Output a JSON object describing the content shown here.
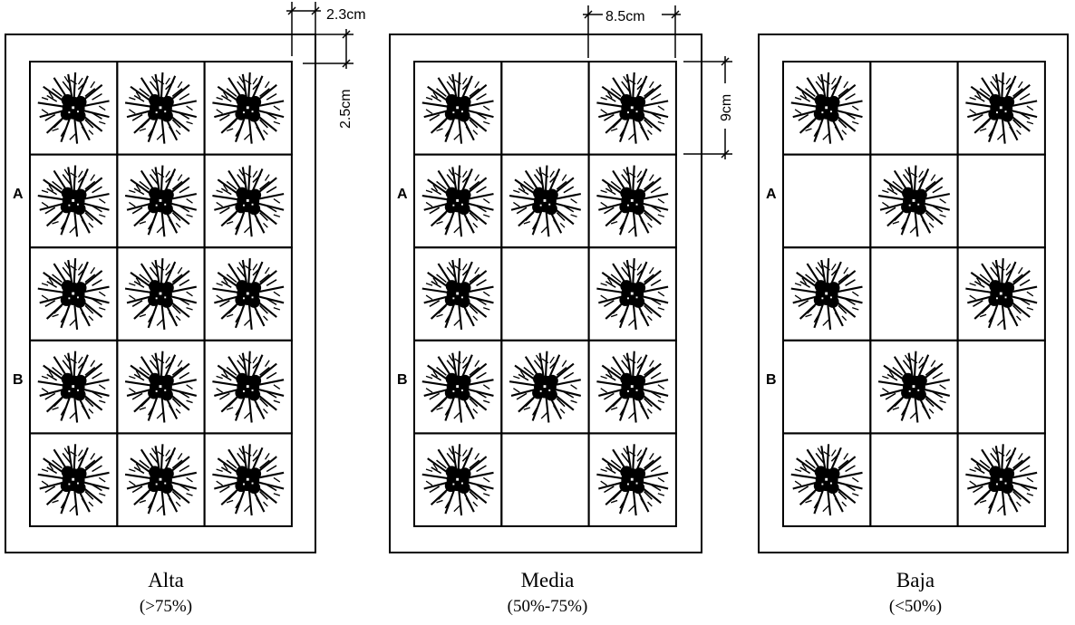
{
  "dimensions": {
    "d1": "2.3cm",
    "d2": "2.5cm",
    "d3": "8.5cm",
    "d4": "9cm"
  },
  "row_labels": [
    "A",
    "B"
  ],
  "panels": [
    {
      "title": "Alta",
      "subtitle": "(>75%)",
      "pattern": [
        [
          1,
          1,
          1
        ],
        [
          1,
          1,
          1
        ],
        [
          1,
          1,
          1
        ],
        [
          1,
          1,
          1
        ],
        [
          1,
          1,
          1
        ]
      ]
    },
    {
      "title": "Media",
      "subtitle": "(50%-75%)",
      "pattern": [
        [
          1,
          0,
          1
        ],
        [
          1,
          1,
          1
        ],
        [
          1,
          0,
          1
        ],
        [
          1,
          1,
          1
        ],
        [
          1,
          0,
          1
        ]
      ]
    },
    {
      "title": "Baja",
      "subtitle": "(<50%)",
      "pattern": [
        [
          1,
          0,
          1
        ],
        [
          0,
          1,
          0
        ],
        [
          1,
          0,
          1
        ],
        [
          0,
          1,
          0
        ],
        [
          1,
          0,
          1
        ]
      ]
    }
  ],
  "colors": {
    "line": "#000000",
    "plant": "#000000",
    "background": "#ffffff"
  }
}
